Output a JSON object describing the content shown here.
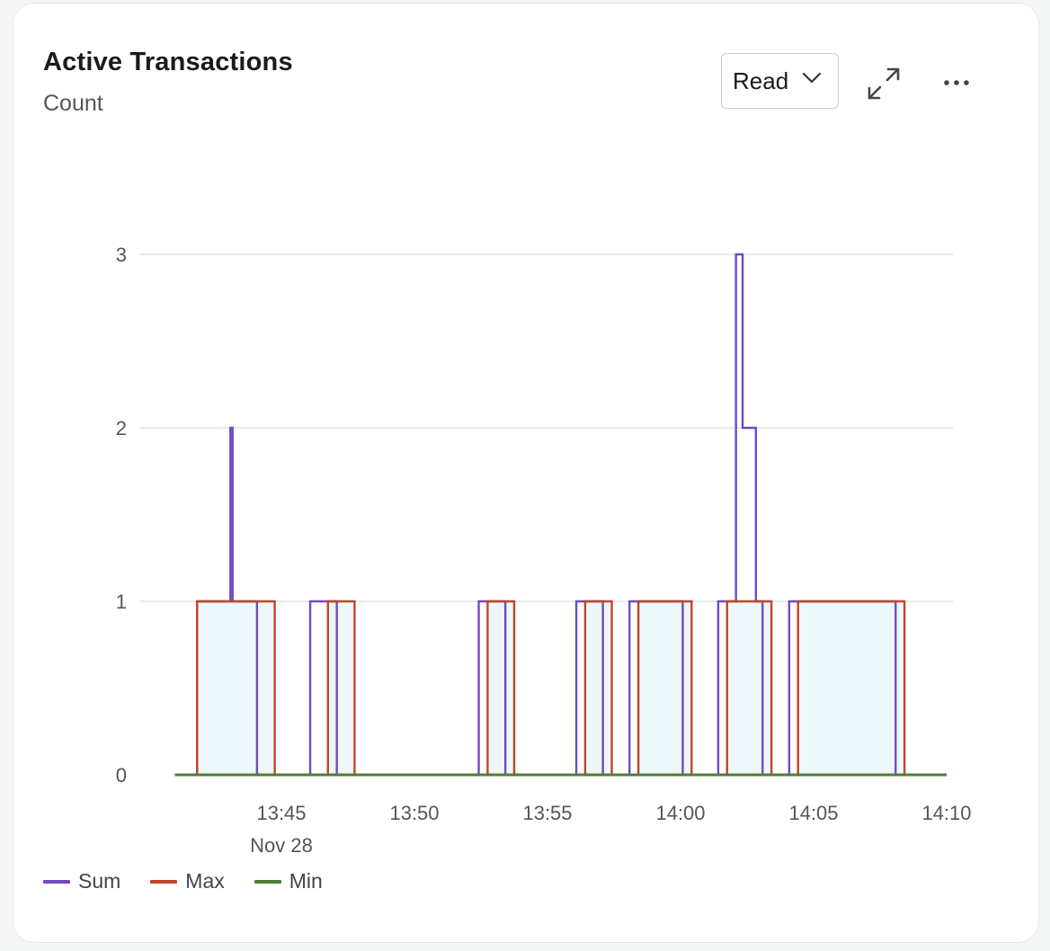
{
  "card": {
    "title": "Active Transactions",
    "subtitle": "Count",
    "dropdown": {
      "selected": "Read",
      "icon": "chevron-down-icon"
    },
    "actions": [
      {
        "name": "expand",
        "icon": "expand-icon"
      },
      {
        "name": "more",
        "icon": "more-horizontal-icon"
      }
    ]
  },
  "chart_data": {
    "type": "line",
    "step": true,
    "x_axis": {
      "ticks": [
        "13:45",
        "13:50",
        "13:55",
        "14:00",
        "14:05",
        "14:10"
      ],
      "date_label": "Nov 28",
      "range": [
        "13:41",
        "14:10"
      ]
    },
    "y_axis": {
      "ticks": [
        0,
        1,
        2,
        3
      ],
      "ylim": [
        0,
        3
      ]
    },
    "grid": true,
    "legend_position": "bottom-left",
    "series": [
      {
        "name": "Sum",
        "color": "#6f4bc2",
        "points": [
          [
            "13:41:00",
            0
          ],
          [
            "13:41:50",
            1
          ],
          [
            "13:43:05",
            1
          ],
          [
            "13:43:05",
            2
          ],
          [
            "13:43:10",
            1
          ],
          [
            "13:44:05",
            0
          ],
          [
            "13:46:05",
            1
          ],
          [
            "13:47:05",
            0
          ],
          [
            "13:52:25",
            1
          ],
          [
            "13:53:25",
            0
          ],
          [
            "13:56:05",
            1
          ],
          [
            "13:57:05",
            0
          ],
          [
            "13:58:05",
            1
          ],
          [
            "14:00:05",
            0
          ],
          [
            "14:01:25",
            1
          ],
          [
            "14:02:05",
            1
          ],
          [
            "14:02:05",
            3
          ],
          [
            "14:02:20",
            3
          ],
          [
            "14:02:20",
            2
          ],
          [
            "14:02:50",
            2
          ],
          [
            "14:02:50",
            1
          ],
          [
            "14:03:05",
            0
          ],
          [
            "14:04:05",
            1
          ],
          [
            "14:08:05",
            0
          ],
          [
            "14:10:00",
            0
          ]
        ]
      },
      {
        "name": "Max",
        "color": "#c0452a",
        "points": [
          [
            "13:41:00",
            0
          ],
          [
            "13:41:50",
            1
          ],
          [
            "13:44:45",
            0
          ],
          [
            "13:46:45",
            1
          ],
          [
            "13:47:45",
            0
          ],
          [
            "13:52:45",
            1
          ],
          [
            "13:53:45",
            0
          ],
          [
            "13:56:25",
            1
          ],
          [
            "13:57:25",
            0
          ],
          [
            "13:58:25",
            1
          ],
          [
            "14:00:25",
            0
          ],
          [
            "14:01:45",
            1
          ],
          [
            "14:03:25",
            0
          ],
          [
            "14:04:25",
            1
          ],
          [
            "14:08:25",
            0
          ],
          [
            "14:10:00",
            0
          ]
        ]
      },
      {
        "name": "Min",
        "color": "#4c7f34",
        "points": [
          [
            "13:41:00",
            0
          ],
          [
            "14:10:00",
            0
          ]
        ]
      }
    ]
  }
}
